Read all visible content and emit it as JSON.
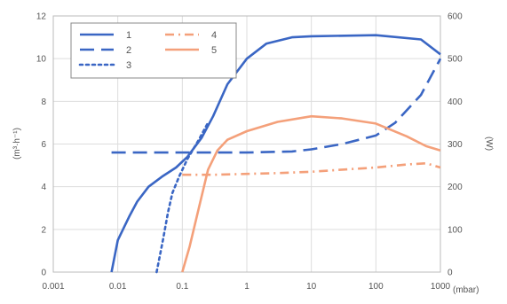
{
  "chart_data": {
    "type": "line",
    "x_scale": "log",
    "xlim": [
      0.001,
      1000
    ],
    "x_ticks": [
      "0.001",
      "0.01",
      "0.1",
      "1",
      "10",
      "100",
      "1000"
    ],
    "xlabel": "(mbar)",
    "y_left": {
      "label": "(m³·h⁻¹)",
      "lim": [
        0,
        12
      ],
      "ticks": [
        "0",
        "2",
        "4",
        "6",
        "8",
        "10",
        "12"
      ]
    },
    "y_right": {
      "label": "(W)",
      "lim": [
        0,
        600
      ],
      "ticks": [
        "0",
        "100",
        "200",
        "300",
        "400",
        "500",
        "600"
      ]
    },
    "grid": true,
    "legend_position": "top-left",
    "series": [
      {
        "name": "1",
        "axis": "left",
        "color": "#3a66c4",
        "style": "solid",
        "points": [
          [
            0.008,
            0
          ],
          [
            0.01,
            1.5
          ],
          [
            0.015,
            2.6
          ],
          [
            0.02,
            3.3
          ],
          [
            0.03,
            4.0
          ],
          [
            0.05,
            4.5
          ],
          [
            0.08,
            4.9
          ],
          [
            0.12,
            5.4
          ],
          [
            0.2,
            6.3
          ],
          [
            0.3,
            7.3
          ],
          [
            0.5,
            8.8
          ],
          [
            1,
            10.0
          ],
          [
            2,
            10.7
          ],
          [
            5,
            11.0
          ],
          [
            10,
            11.05
          ],
          [
            100,
            11.1
          ],
          [
            500,
            10.9
          ],
          [
            1000,
            10.2
          ]
        ]
      },
      {
        "name": "2",
        "axis": "left",
        "color": "#3a66c4",
        "style": "dashed",
        "points": [
          [
            0.008,
            5.6
          ],
          [
            0.1,
            5.6
          ],
          [
            1,
            5.6
          ],
          [
            5,
            5.65
          ],
          [
            10,
            5.75
          ],
          [
            30,
            6.0
          ],
          [
            100,
            6.4
          ],
          [
            200,
            7.0
          ],
          [
            500,
            8.3
          ],
          [
            1000,
            10.0
          ]
        ]
      },
      {
        "name": "3",
        "axis": "left",
        "color": "#3a66c4",
        "style": "dotted",
        "points": [
          [
            0.04,
            0
          ],
          [
            0.05,
            1.5
          ],
          [
            0.06,
            2.8
          ],
          [
            0.07,
            3.7
          ],
          [
            0.09,
            4.5
          ],
          [
            0.12,
            5.3
          ],
          [
            0.18,
            6.2
          ],
          [
            0.25,
            7.0
          ]
        ]
      },
      {
        "name": "4",
        "axis": "right",
        "color": "#f4a07a",
        "style": "dash-dot",
        "points": [
          [
            0.1,
            228
          ],
          [
            0.3,
            228
          ],
          [
            1,
            230
          ],
          [
            3,
            232
          ],
          [
            10,
            235
          ],
          [
            30,
            240
          ],
          [
            100,
            245
          ],
          [
            300,
            252
          ],
          [
            600,
            255
          ],
          [
            1000,
            245
          ]
        ]
      },
      {
        "name": "5",
        "axis": "right",
        "color": "#f4a07a",
        "style": "solid",
        "points": [
          [
            0.1,
            0
          ],
          [
            0.13,
            60
          ],
          [
            0.18,
            150
          ],
          [
            0.25,
            240
          ],
          [
            0.35,
            285
          ],
          [
            0.5,
            310
          ],
          [
            1,
            330
          ],
          [
            3,
            352
          ],
          [
            10,
            365
          ],
          [
            30,
            360
          ],
          [
            100,
            348
          ],
          [
            300,
            318
          ],
          [
            600,
            295
          ],
          [
            1000,
            285
          ]
        ]
      }
    ]
  }
}
